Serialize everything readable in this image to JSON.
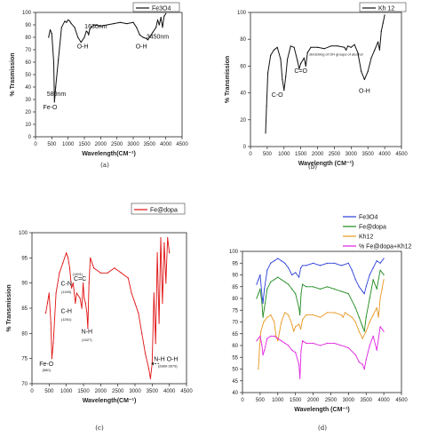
{
  "figure": {
    "captions": [
      "(a)",
      "(b)",
      "(c)",
      "(d)"
    ]
  },
  "chart_data": [
    {
      "type": "line",
      "panel": "a",
      "xlabel": "Wavelength(CM⁻¹)",
      "ylabel": "% Trasmission",
      "xlim": [
        0,
        4500
      ],
      "ylim": [
        0,
        100
      ],
      "x_ticks": [
        0,
        500,
        1000,
        1500,
        2000,
        2500,
        3000,
        3500,
        4000,
        4500
      ],
      "y_ticks": [
        0,
        10,
        20,
        30,
        40,
        50,
        60,
        70,
        80,
        90,
        100
      ],
      "x_tick_labels": [
        "0",
        "500",
        "1000",
        "1500",
        "2000",
        "2500",
        "3000",
        "3500",
        "4000",
        "4500"
      ],
      "y_tick_labels": [
        "0",
        "10",
        "20",
        "30",
        "40",
        "50",
        "60",
        "70",
        "80",
        "90",
        "100"
      ],
      "series": [
        {
          "name": "Fe3O4",
          "color": "#111111",
          "x": [
            400,
            450,
            500,
            560,
            580,
            620,
            700,
            800,
            900,
            950,
            1000,
            1050,
            1100,
            1200,
            1300,
            1400,
            1500,
            1560,
            1600,
            1630,
            1660,
            1700,
            1800,
            2000,
            2200,
            2400,
            2600,
            2800,
            3000,
            3100,
            3200,
            3300,
            3400,
            3450,
            3500,
            3600,
            3700,
            3750,
            3800,
            3850,
            3900,
            3950,
            4000
          ],
          "y": [
            80,
            86,
            83,
            60,
            28,
            40,
            62,
            88,
            93,
            92,
            94,
            93,
            91,
            88,
            80,
            76,
            80,
            85,
            84,
            82,
            86,
            88,
            90,
            89,
            90,
            91,
            92,
            91,
            92,
            88,
            82,
            80,
            79,
            78,
            80,
            84,
            88,
            94,
            90,
            96,
            88,
            97,
            99
          ]
        }
      ],
      "annotations": [
        {
          "text": "Fe-O",
          "x": 450,
          "y": 22
        },
        {
          "text": "580nm",
          "x": 640,
          "y": 33
        },
        {
          "text": "O-H",
          "x": 1450,
          "y": 71
        },
        {
          "text": "1630nm",
          "x": 1850,
          "y": 87
        },
        {
          "text": "O-H",
          "x": 3250,
          "y": 71
        },
        {
          "text": "3450nm",
          "x": 3750,
          "y": 79
        }
      ]
    },
    {
      "type": "line",
      "panel": "b",
      "xlabel": "Wavelength (CM⁻¹)",
      "ylabel": "% Transmission",
      "xlim": [
        0,
        4500
      ],
      "ylim": [
        0,
        100
      ],
      "x_ticks": [
        0,
        500,
        1000,
        1500,
        2000,
        2500,
        3000,
        3500,
        4000,
        4500
      ],
      "y_ticks": [
        0,
        20,
        40,
        60,
        80,
        100
      ],
      "x_tick_labels": [
        "0",
        "500",
        "1000",
        "1500",
        "2000",
        "2500",
        "3000",
        "3500",
        "4000",
        "4500"
      ],
      "y_tick_labels": [
        "0",
        "20",
        "40",
        "60",
        "80",
        "100"
      ],
      "series": [
        {
          "name": "Kh 12",
          "color": "#111111",
          "x": [
            450,
            480,
            520,
            600,
            700,
            800,
            900,
            950,
            1000,
            1050,
            1100,
            1200,
            1300,
            1400,
            1450,
            1500,
            1600,
            1650,
            1700,
            1800,
            2000,
            2200,
            2400,
            2600,
            2800,
            2850,
            2900,
            3000,
            3100,
            3200,
            3300,
            3400,
            3500,
            3600,
            3700,
            3800,
            3850,
            3900,
            3950,
            4000
          ],
          "y": [
            10,
            30,
            55,
            68,
            72,
            74,
            65,
            50,
            42,
            52,
            65,
            75,
            74,
            64,
            58,
            62,
            66,
            60,
            70,
            74,
            74,
            73,
            75,
            75,
            74,
            72,
            75,
            74,
            76,
            70,
            56,
            50,
            56,
            66,
            72,
            78,
            72,
            86,
            92,
            98
          ]
        }
      ],
      "annotations": [
        {
          "text": "C-O",
          "x": 800,
          "y": 37
        },
        {
          "text": "C=O",
          "x": 1500,
          "y": 55
        },
        {
          "text": "O-H",
          "x": 3400,
          "y": 40
        },
        {
          "text": "stretching of OH groups of alcohol",
          "x": 2550,
          "y": 68
        }
      ]
    },
    {
      "type": "line",
      "panel": "c",
      "xlabel": "Wavelength(CM⁻¹)",
      "ylabel": "% Transmission",
      "xlim": [
        0,
        4500
      ],
      "ylim": [
        70,
        100
      ],
      "x_ticks": [
        0,
        500,
        1000,
        1500,
        2000,
        2500,
        3000,
        3500,
        4000,
        4500
      ],
      "y_ticks": [
        70,
        75,
        80,
        85,
        90,
        95,
        100
      ],
      "x_tick_labels": [
        "0",
        "500",
        "1000",
        "1500",
        "2000",
        "2500",
        "3000",
        "3500",
        "4000",
        "4500"
      ],
      "y_tick_labels": [
        "70",
        "75",
        "80",
        "85",
        "90",
        "95",
        "100"
      ],
      "series": [
        {
          "name": "Fe@dopa",
          "color": "#e01010",
          "x": [
            400,
            450,
            500,
            550,
            580,
            620,
            700,
            800,
            900,
            1000,
            1050,
            1100,
            1150,
            1200,
            1261,
            1300,
            1400,
            1450,
            1490,
            1520,
            1560,
            1600,
            1627,
            1660,
            1700,
            1800,
            2000,
            2200,
            2400,
            2600,
            2800,
            2900,
            3000,
            3100,
            3200,
            3300,
            3400,
            3450,
            3500,
            3550,
            3600,
            3650,
            3700,
            3750,
            3800,
            3850,
            3900,
            3950,
            4000
          ],
          "y": [
            84,
            86,
            88,
            82,
            75,
            78,
            88,
            92,
            94,
            96,
            95,
            93,
            89,
            90,
            86,
            88,
            87,
            85,
            90,
            87,
            86,
            84,
            81,
            90,
            95,
            93,
            92,
            92,
            93,
            92,
            91,
            88,
            86,
            84,
            80,
            76,
            73,
            71,
            74,
            88,
            78,
            96,
            82,
            99,
            86,
            98,
            90,
            99,
            96
          ]
        }
      ],
      "legend": {
        "position": "top-right"
      },
      "annotations": [
        {
          "text": "C-N",
          "x": 1000,
          "y": 89.5
        },
        {
          "text": "(1160)",
          "x": 1000,
          "y": 88
        },
        {
          "text": "C-H",
          "x": 1000,
          "y": 84
        },
        {
          "text": "(1261)",
          "x": 1000,
          "y": 82.5
        },
        {
          "text": "(1491)",
          "x": 1330,
          "y": 91.5
        },
        {
          "text": "C=C",
          "x": 1400,
          "y": 90.5
        },
        {
          "text": "N-H",
          "x": 1600,
          "y": 80
        },
        {
          "text": "(1627)",
          "x": 1600,
          "y": 78.5
        },
        {
          "text": "Fe-O",
          "x": 420,
          "y": 73.5
        },
        {
          "text": "(580)",
          "x": 420,
          "y": 72.5
        },
        {
          "text": "N-H  O-H",
          "x": 3900,
          "y": 74.5
        },
        {
          "text": "(2880-3679)",
          "x": 3950,
          "y": 73.3
        }
      ]
    },
    {
      "type": "line",
      "panel": "d",
      "xlabel": "Wavelength (CM⁻¹)",
      "xlim": [
        0,
        4500
      ],
      "ylim": [
        40,
        100
      ],
      "x_ticks": [
        0,
        500,
        1000,
        1500,
        2000,
        2500,
        3000,
        3500,
        4000,
        4500
      ],
      "y_ticks": [
        40,
        45,
        50,
        55,
        60,
        65,
        70,
        75,
        80,
        85,
        90,
        95,
        100
      ],
      "x_tick_labels": [
        "0",
        "500",
        "1000",
        "1500",
        "2000",
        "2500",
        "3000",
        "3500",
        "4000",
        "4500"
      ],
      "y_tick_labels": [
        "40",
        "45",
        "50",
        "55",
        "60",
        "65",
        "70",
        "75",
        "80",
        "85",
        "90",
        "95",
        "100"
      ],
      "legend": {
        "position": "top-right"
      },
      "series": [
        {
          "name": "Fe3O4",
          "color": "#2a3fd8",
          "x": [
            400,
            450,
            500,
            560,
            580,
            620,
            700,
            800,
            900,
            1000,
            1100,
            1200,
            1300,
            1400,
            1500,
            1600,
            1650,
            1700,
            1800,
            2000,
            2200,
            2400,
            2600,
            2800,
            3000,
            3100,
            3200,
            3300,
            3400,
            3450,
            3500,
            3600,
            3700,
            3800,
            3900,
            4000
          ],
          "y": [
            86,
            88,
            90,
            80,
            78,
            84,
            92,
            95,
            96,
            97,
            96,
            95,
            93,
            90,
            91,
            89,
            93,
            94,
            94,
            95,
            94,
            95,
            95,
            94,
            95,
            92,
            88,
            85,
            83,
            82,
            85,
            90,
            93,
            96,
            95,
            97
          ]
        },
        {
          "name": "Fe@dopa",
          "color": "#1e8a1e",
          "x": [
            400,
            450,
            500,
            550,
            580,
            620,
            700,
            800,
            900,
            1000,
            1100,
            1200,
            1300,
            1400,
            1500,
            1600,
            1627,
            1660,
            1700,
            1800,
            2000,
            2200,
            2400,
            2600,
            2800,
            3000,
            3200,
            3300,
            3400,
            3450,
            3500,
            3600,
            3700,
            3800,
            3900,
            4000
          ],
          "y": [
            80,
            82,
            84,
            78,
            72,
            76,
            84,
            87,
            88,
            89,
            88,
            87,
            86,
            84,
            82,
            76,
            73,
            82,
            86,
            85,
            85,
            84,
            85,
            84,
            83,
            82,
            76,
            72,
            68,
            66,
            72,
            80,
            88,
            84,
            92,
            90
          ]
        },
        {
          "name": "Kh12",
          "color": "#e8961e",
          "x": [
            450,
            480,
            520,
            600,
            700,
            800,
            900,
            950,
            1000,
            1050,
            1100,
            1200,
            1300,
            1400,
            1450,
            1500,
            1600,
            1650,
            1700,
            1800,
            2000,
            2200,
            2400,
            2600,
            2800,
            2850,
            2900,
            3000,
            3100,
            3200,
            3300,
            3400,
            3500,
            3600,
            3700,
            3800,
            3850,
            3900,
            3950,
            4000
          ],
          "y": [
            50,
            58,
            66,
            70,
            72,
            73,
            70,
            64,
            62,
            66,
            70,
            74,
            73,
            69,
            66,
            68,
            69,
            67,
            71,
            73,
            73,
            72,
            74,
            74,
            73,
            72,
            74,
            73,
            72,
            70,
            66,
            63,
            66,
            70,
            73,
            76,
            72,
            80,
            84,
            88
          ]
        },
        {
          "name": "% Fe@dopa+Kh12",
          "color": "#e020e0",
          "x": [
            400,
            450,
            500,
            550,
            580,
            620,
            700,
            800,
            900,
            1000,
            1100,
            1200,
            1300,
            1400,
            1500,
            1600,
            1627,
            1660,
            1700,
            1800,
            2000,
            2200,
            2400,
            2600,
            2800,
            3000,
            3200,
            3300,
            3400,
            3450,
            3500,
            3600,
            3700,
            3800,
            3900,
            4000
          ],
          "y": [
            62,
            63,
            64,
            60,
            56,
            58,
            63,
            64,
            64,
            63,
            62,
            61,
            60,
            58,
            57,
            52,
            46,
            58,
            62,
            61,
            61,
            60,
            61,
            61,
            60,
            59,
            56,
            53,
            52,
            50,
            54,
            60,
            64,
            58,
            68,
            66
          ]
        }
      ]
    }
  ]
}
